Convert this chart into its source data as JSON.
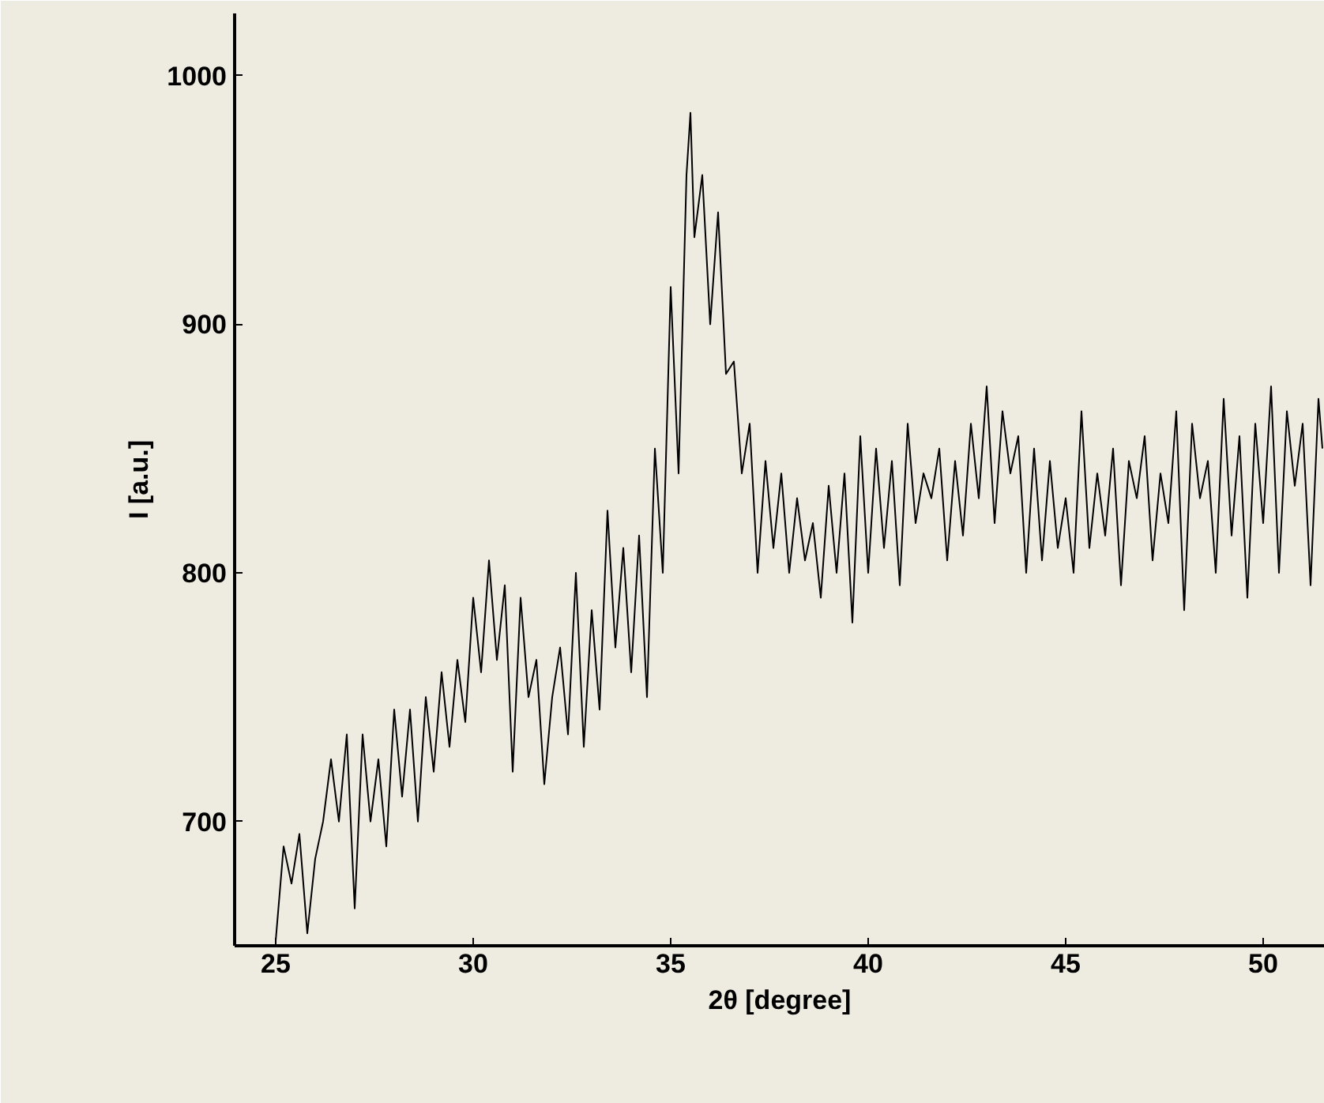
{
  "chart_data": {
    "type": "line",
    "xlabel": "2θ [degree]",
    "ylabel": "I [a.u.]",
    "xlim": [
      23.96,
      51.56
    ],
    "ylim": [
      650,
      1025
    ],
    "xticks": [
      25,
      30,
      35,
      40,
      45,
      50
    ],
    "yticks": [
      700,
      800,
      900,
      1000
    ],
    "grid": false,
    "marker": "none",
    "line_style": "solid",
    "series": [
      {
        "color": "#000000",
        "x": [
          25.0,
          25.2,
          25.4,
          25.6,
          25.8,
          26.0,
          26.2,
          26.4,
          26.6,
          26.8,
          27.0,
          27.2,
          27.4,
          27.6,
          27.8,
          28.0,
          28.2,
          28.4,
          28.6,
          28.8,
          29.0,
          29.2,
          29.4,
          29.6,
          29.8,
          30.0,
          30.2,
          30.4,
          30.6,
          30.8,
          31.0,
          31.2,
          31.4,
          31.6,
          31.8,
          32.0,
          32.2,
          32.4,
          32.6,
          32.8,
          33.0,
          33.2,
          33.4,
          33.6,
          33.8,
          34.0,
          34.2,
          34.4,
          34.6,
          34.8,
          35.0,
          35.2,
          35.4,
          35.5,
          35.6,
          35.8,
          36.0,
          36.2,
          36.4,
          36.6,
          36.8,
          37.0,
          37.2,
          37.4,
          37.6,
          37.8,
          38.0,
          38.2,
          38.4,
          38.6,
          38.8,
          39.0,
          39.2,
          39.4,
          39.6,
          39.8,
          40.0,
          40.2,
          40.4,
          40.6,
          40.8,
          41.0,
          41.2,
          41.4,
          41.6,
          41.8,
          42.0,
          42.2,
          42.4,
          42.6,
          42.8,
          43.0,
          43.2,
          43.4,
          43.6,
          43.8,
          44.0,
          44.2,
          44.4,
          44.6,
          44.8,
          45.0,
          45.2,
          45.4,
          45.6,
          45.8,
          46.0,
          46.2,
          46.4,
          46.6,
          46.8,
          47.0,
          47.2,
          47.4,
          47.6,
          47.8,
          48.0,
          48.2,
          48.4,
          48.6,
          48.8,
          49.0,
          49.2,
          49.4,
          49.6,
          49.8,
          50.0,
          50.2,
          50.4,
          50.6,
          50.8,
          51.0,
          51.2,
          51.4,
          51.5
        ],
        "values": [
          652,
          690,
          675,
          695,
          655,
          685,
          700,
          725,
          700,
          735,
          665,
          735,
          700,
          725,
          690,
          745,
          710,
          745,
          700,
          750,
          720,
          760,
          730,
          765,
          740,
          790,
          760,
          805,
          765,
          795,
          720,
          790,
          750,
          765,
          715,
          750,
          770,
          735,
          800,
          730,
          785,
          745,
          825,
          770,
          810,
          760,
          815,
          750,
          850,
          800,
          915,
          840,
          960,
          985,
          935,
          960,
          900,
          945,
          880,
          885,
          840,
          860,
          800,
          845,
          810,
          840,
          800,
          830,
          805,
          820,
          790,
          835,
          800,
          840,
          780,
          855,
          800,
          850,
          810,
          845,
          795,
          860,
          820,
          840,
          830,
          850,
          805,
          845,
          815,
          860,
          830,
          875,
          820,
          865,
          840,
          855,
          800,
          850,
          805,
          845,
          810,
          830,
          800,
          865,
          810,
          840,
          815,
          850,
          795,
          845,
          830,
          855,
          805,
          840,
          820,
          865,
          785,
          860,
          830,
          845,
          800,
          870,
          815,
          855,
          790,
          860,
          820,
          875,
          800,
          865,
          835,
          860,
          795,
          870,
          850
        ]
      }
    ]
  }
}
